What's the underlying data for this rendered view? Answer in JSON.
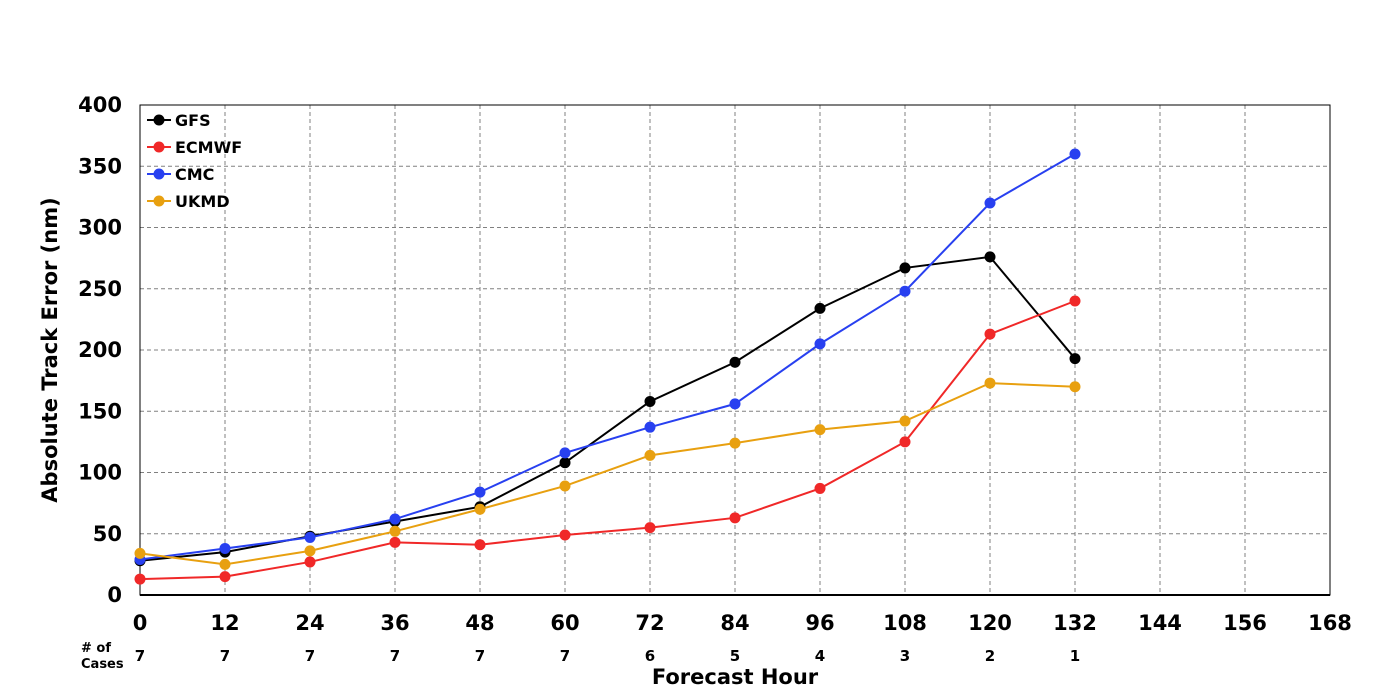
{
  "chart_data": {
    "type": "line",
    "title": "",
    "xlabel": "Forecast Hour",
    "ylabel": "Absolute Track Error (nm)",
    "xlim": [
      0,
      168
    ],
    "ylim": [
      0,
      400
    ],
    "x_ticks": [
      0,
      12,
      24,
      36,
      48,
      60,
      72,
      84,
      96,
      108,
      120,
      132,
      144,
      156,
      168
    ],
    "y_ticks": [
      0,
      50,
      100,
      150,
      200,
      250,
      300,
      350,
      400
    ],
    "grid": true,
    "legend": "top-left",
    "x": [
      0,
      12,
      24,
      36,
      48,
      60,
      72,
      84,
      96,
      108,
      120,
      132
    ],
    "series": [
      {
        "name": "GFS",
        "color": "#000000",
        "values": [
          28,
          35,
          48,
          60,
          72,
          108,
          158,
          190,
          234,
          267,
          276,
          193
        ]
      },
      {
        "name": "ECMWF",
        "color": "#f02828",
        "values": [
          13,
          15,
          27,
          43,
          41,
          49,
          55,
          63,
          87,
          125,
          213,
          240
        ]
      },
      {
        "name": "CMC",
        "color": "#2840f0",
        "values": [
          29,
          38,
          47,
          62,
          84,
          116,
          137,
          156,
          205,
          248,
          320,
          360
        ]
      },
      {
        "name": "UKMD",
        "color": "#e8a010",
        "values": [
          34,
          25,
          36,
          52,
          70,
          89,
          114,
          124,
          135,
          142,
          173,
          170
        ]
      }
    ],
    "cases_label": "# of Cases",
    "cases": [
      7,
      7,
      7,
      7,
      7,
      7,
      6,
      5,
      4,
      3,
      2,
      1
    ]
  }
}
